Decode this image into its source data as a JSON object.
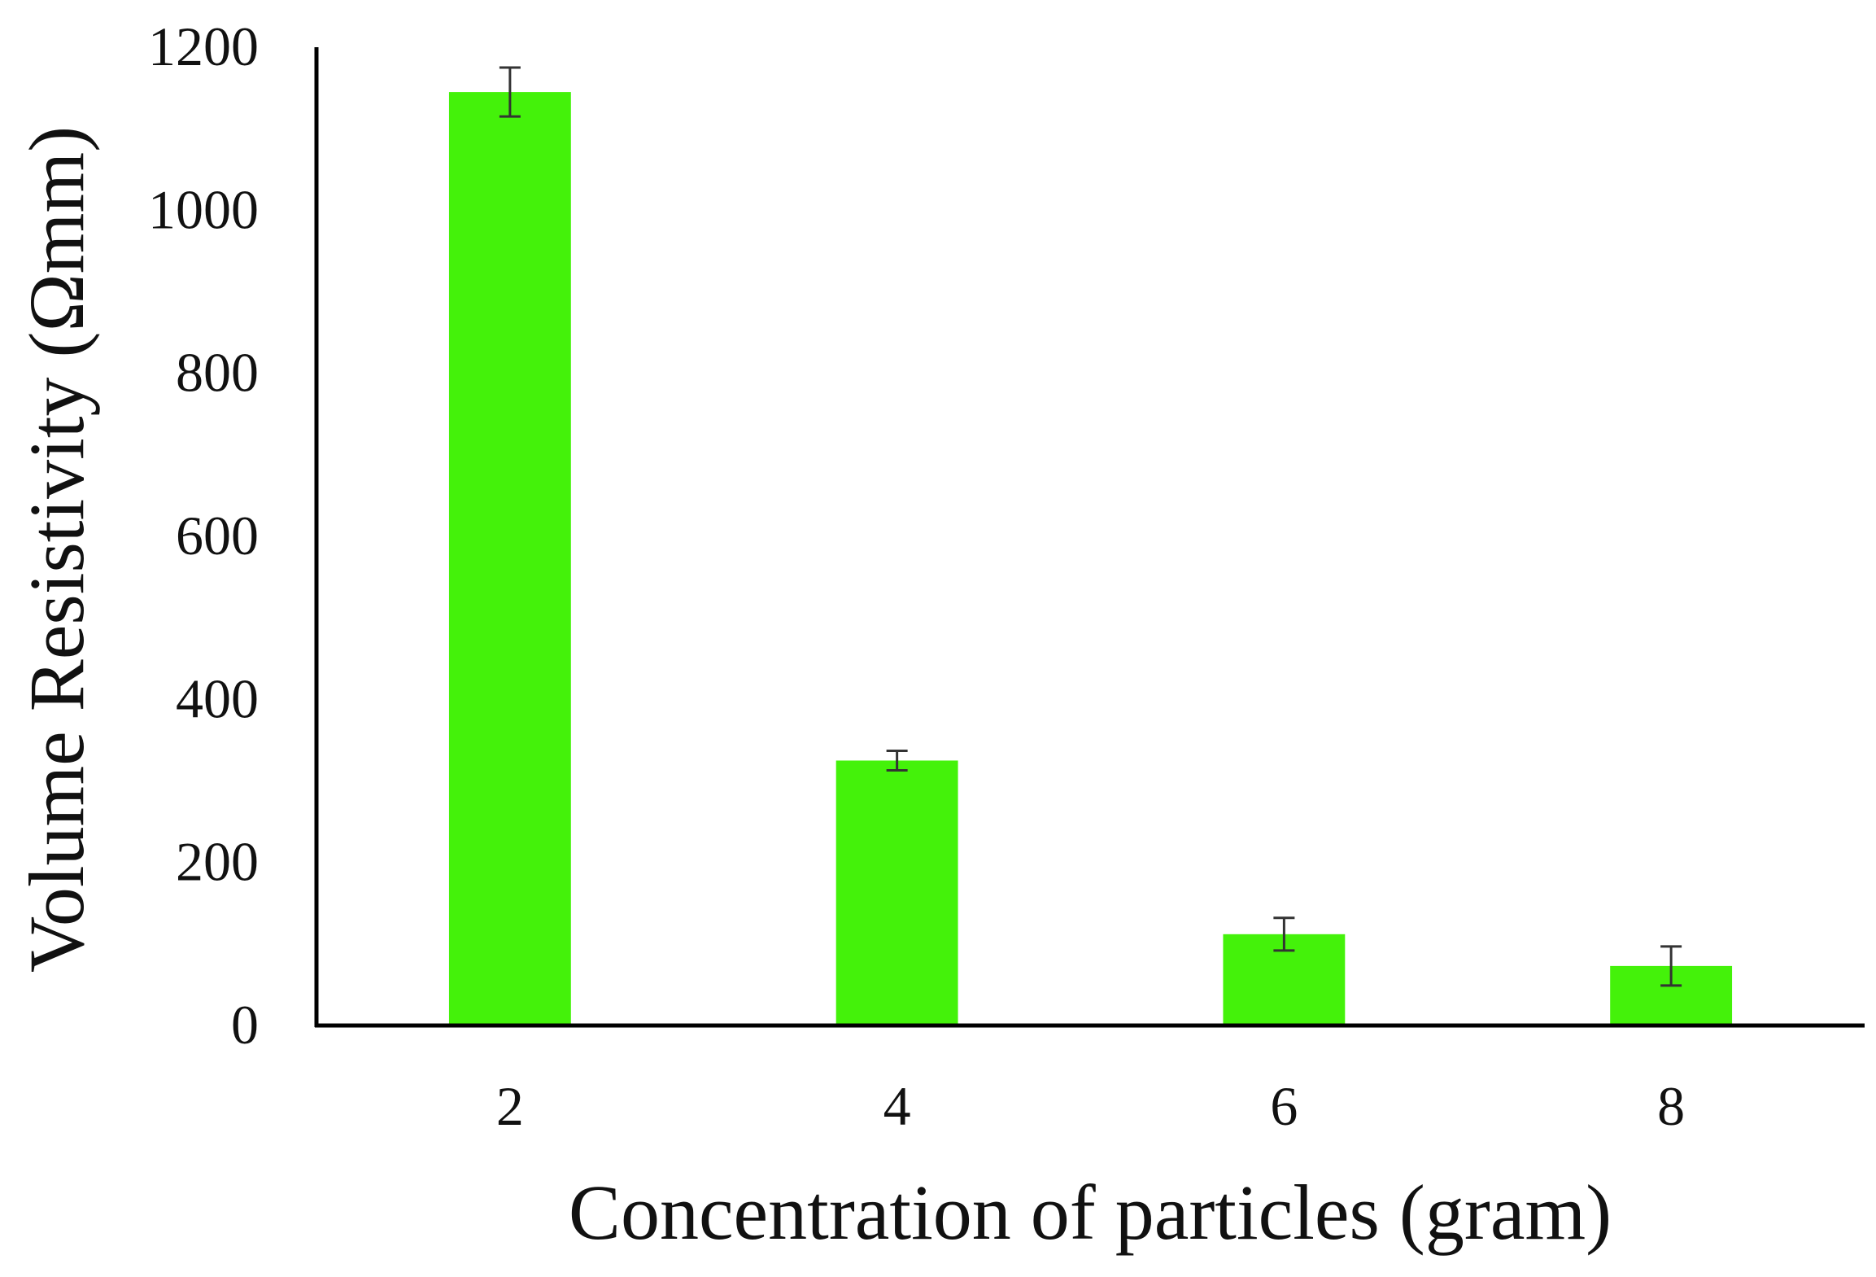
{
  "chart_data": {
    "type": "bar",
    "title": "",
    "xlabel": "Concentration of particles (gram)",
    "ylabel": "Volume Resistivity (Ωmm)",
    "categories": [
      "2",
      "4",
      "6",
      "8"
    ],
    "series": [
      {
        "values": [
          1145,
          325,
          112,
          73
        ],
        "errors": [
          30,
          12,
          20,
          24
        ],
        "color": "#44f20a"
      }
    ],
    "ylim": [
      0,
      1200
    ],
    "yticks": [
      0,
      200,
      400,
      600,
      800,
      1000,
      1200
    ],
    "grid": false,
    "legend": "none"
  }
}
